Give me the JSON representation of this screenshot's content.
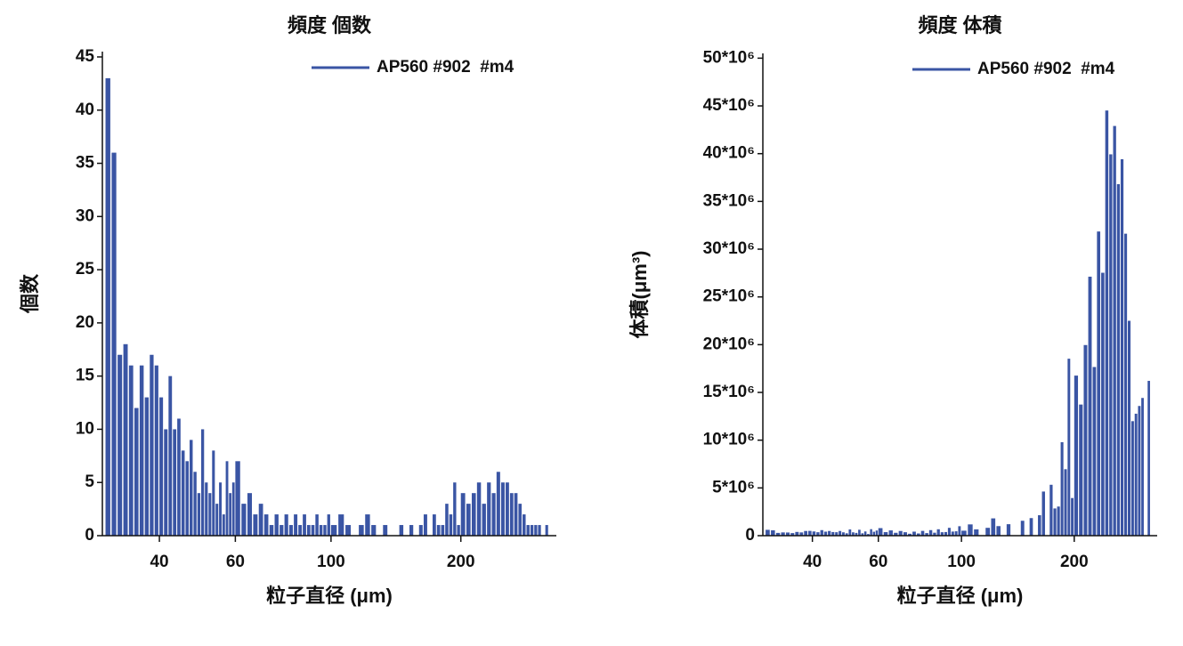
{
  "chart_data": [
    {
      "type": "bar",
      "title": "頻度 個数",
      "x_label": "粒子直径 (μm)",
      "y_label": "個数",
      "xscale": "log",
      "legend": "upper right",
      "xlim": [
        29.5,
        333
      ],
      "xticks": [
        40,
        60,
        100,
        200
      ],
      "ylim": [
        0,
        45.5
      ],
      "yticks": [
        0,
        5,
        10,
        15,
        20,
        25,
        30,
        35,
        40,
        45
      ],
      "x": [
        30,
        31,
        32,
        33,
        34,
        35,
        36,
        37,
        38,
        39,
        40,
        41,
        42,
        43,
        44,
        45,
        46,
        47,
        48,
        49,
        50,
        51,
        52,
        53,
        54,
        55,
        56,
        57,
        58,
        59,
        60,
        62,
        64,
        66,
        68,
        70,
        72,
        74,
        76,
        78,
        80,
        82,
        84,
        86,
        88,
        90,
        92,
        94,
        96,
        98,
        100,
        104,
        108,
        112,
        116,
        120,
        124,
        128,
        132,
        136,
        140,
        144,
        148,
        152,
        156,
        160,
        164,
        168,
        172,
        176,
        180,
        184,
        188,
        192,
        196,
        200,
        206,
        212,
        218,
        224,
        230,
        236,
        242,
        248,
        254,
        260,
        266,
        272,
        278,
        284,
        290,
        296,
        302,
        308,
        314,
        320,
        326
      ],
      "series": [
        {
          "name": "AP560 #902  #m4",
          "color": "#3a55a4",
          "values": [
            43,
            36,
            17,
            18,
            16,
            12,
            16,
            13,
            17,
            16,
            13,
            10,
            15,
            10,
            11,
            8,
            7,
            9,
            6,
            4,
            10,
            5,
            4,
            8,
            3,
            5,
            2,
            7,
            4,
            5,
            7,
            3,
            4,
            2,
            3,
            2,
            1,
            2,
            1,
            2,
            1,
            2,
            1,
            2,
            1,
            1,
            2,
            1,
            1,
            2,
            1,
            2,
            1,
            0,
            1,
            2,
            1,
            0,
            1,
            0,
            0,
            1,
            0,
            1,
            0,
            1,
            2,
            0,
            2,
            1,
            1,
            3,
            2,
            5,
            1,
            4,
            3,
            4,
            5,
            3,
            5,
            4,
            6,
            5,
            5,
            4,
            4,
            3,
            2,
            1,
            1,
            1,
            1,
            0,
            1,
            0,
            0
          ]
        }
      ]
    },
    {
      "type": "bar",
      "title": "頻度 体積",
      "x_label": "粒子直径 (μm)",
      "y_label": "体積(μm³)",
      "xscale": "log",
      "legend": "upper right",
      "xlim": [
        29.5,
        333
      ],
      "xticks": [
        40,
        60,
        100,
        200
      ],
      "ylim": [
        0,
        50500000
      ],
      "yticks": [
        0,
        {
          "value": 5000000,
          "label": "5*10⁶"
        },
        {
          "value": 10000000,
          "label": "10*10⁶"
        },
        {
          "value": 15000000,
          "label": "15*10⁶"
        },
        {
          "value": 20000000,
          "label": "20*10⁶"
        },
        {
          "value": 25000000,
          "label": "25*10⁶"
        },
        {
          "value": 30000000,
          "label": "30*10⁶"
        },
        {
          "value": 35000000,
          "label": "35*10⁶"
        },
        {
          "value": 40000000,
          "label": "40*10⁶"
        },
        {
          "value": 45000000,
          "label": "45*10⁶"
        },
        {
          "value": 50000000,
          "label": "50*10⁶"
        }
      ],
      "x": [
        30,
        31,
        32,
        33,
        34,
        35,
        36,
        37,
        38,
        39,
        40,
        41,
        42,
        43,
        44,
        45,
        46,
        47,
        48,
        49,
        50,
        51,
        52,
        53,
        54,
        55,
        56,
        57,
        58,
        59,
        60,
        62,
        64,
        66,
        68,
        70,
        72,
        74,
        76,
        78,
        80,
        82,
        84,
        86,
        88,
        90,
        92,
        94,
        96,
        98,
        100,
        104,
        108,
        112,
        116,
        120,
        124,
        128,
        132,
        136,
        140,
        144,
        148,
        152,
        156,
        160,
        164,
        168,
        172,
        176,
        180,
        184,
        188,
        192,
        196,
        200,
        206,
        212,
        218,
        224,
        230,
        236,
        242,
        248,
        254,
        260,
        266,
        272,
        278,
        284,
        290,
        296,
        302,
        308,
        314,
        320,
        326
      ],
      "series": [
        {
          "name": "AP560 #902  #m4",
          "color": "#3a55a4",
          "values": [
            610000,
            560000,
            290000,
            340000,
            330000,
            270000,
            390000,
            340000,
            490000,
            500000,
            440000,
            360000,
            580000,
            420000,
            490000,
            380000,
            360000,
            490000,
            350000,
            250000,
            650000,
            350000,
            290000,
            620000,
            250000,
            440000,
            180000,
            680000,
            410000,
            540000,
            790000,
            370000,
            550000,
            300000,
            490000,
            360000,
            200000,
            420000,
            230000,
            500000,
            270000,
            580000,
            310000,
            670000,
            360000,
            380000,
            820000,
            430000,
            460000,
            990000,
            520000,
            1180000,
            660000,
            0,
            820000,
            1810000,
            1000000,
            0,
            1200000,
            0,
            0,
            1560000,
            0,
            1840000,
            0,
            2140000,
            4620000,
            0,
            5330000,
            2850000,
            3050000,
            9790000,
            6960000,
            18530000,
            3940000,
            16760000,
            13730000,
            19960000,
            27120000,
            17660000,
            31850000,
            27530000,
            44520000,
            39930000,
            42900000,
            36810000,
            39420000,
            31620000,
            22500000,
            11990000,
            12770000,
            13580000,
            14420000,
            0,
            16210000,
            0,
            0
          ]
        }
      ]
    }
  ]
}
